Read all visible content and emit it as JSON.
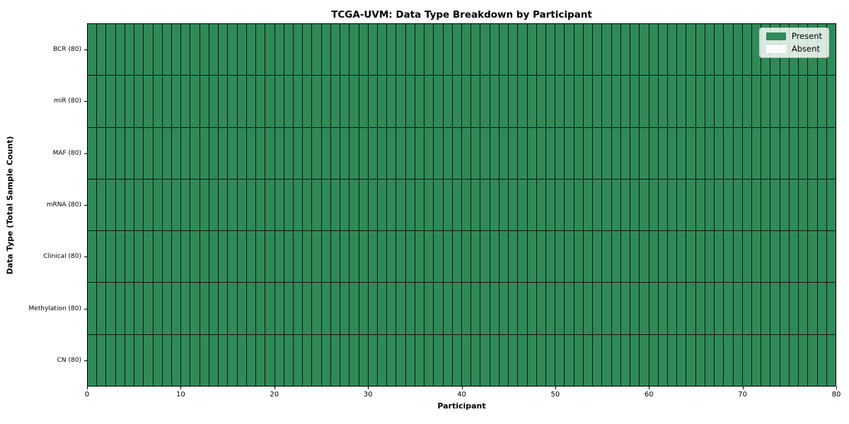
{
  "chart_data": {
    "type": "heatmap",
    "title": "TCGA-UVM: Data Type Breakdown by Participant",
    "xlabel": "Participant",
    "ylabel": "Data Type (Total Sample Count)",
    "xlim": [
      0,
      80
    ],
    "x_ticks": [
      0,
      10,
      20,
      30,
      40,
      50,
      60,
      70,
      80
    ],
    "n_participants": 80,
    "rows": [
      {
        "label": "BCR (80)",
        "data_type": "BCR",
        "total_samples": 80,
        "present_count": 80,
        "absent_count": 0
      },
      {
        "label": "miR (80)",
        "data_type": "miR",
        "total_samples": 80,
        "present_count": 80,
        "absent_count": 0
      },
      {
        "label": "MAF (80)",
        "data_type": "MAF",
        "total_samples": 80,
        "present_count": 80,
        "absent_count": 0
      },
      {
        "label": "mRNA (80)",
        "data_type": "mRNA",
        "total_samples": 80,
        "present_count": 80,
        "absent_count": 0
      },
      {
        "label": "Clinical (80)",
        "data_type": "Clinical",
        "total_samples": 80,
        "present_count": 80,
        "absent_count": 0
      },
      {
        "label": "Methylation (80)",
        "data_type": "Methylation",
        "total_samples": 80,
        "present_count": 80,
        "absent_count": 0
      },
      {
        "label": "CN (80)",
        "data_type": "CN",
        "total_samples": 80,
        "present_count": 80,
        "absent_count": 0
      }
    ],
    "cell_values": "every cell is 1 (Present) for all 80 participants in all 7 rows",
    "legend": {
      "position": "upper-right",
      "entries": [
        {
          "label": "Present",
          "color": "#2e8b57"
        },
        {
          "label": "Absent",
          "color": "#ffffff"
        }
      ]
    },
    "colors": {
      "present": "#2e8b57",
      "absent": "#ffffff",
      "cell_border": "#141414",
      "spine": "#000000",
      "background": "#ffffff"
    },
    "grid": true
  }
}
